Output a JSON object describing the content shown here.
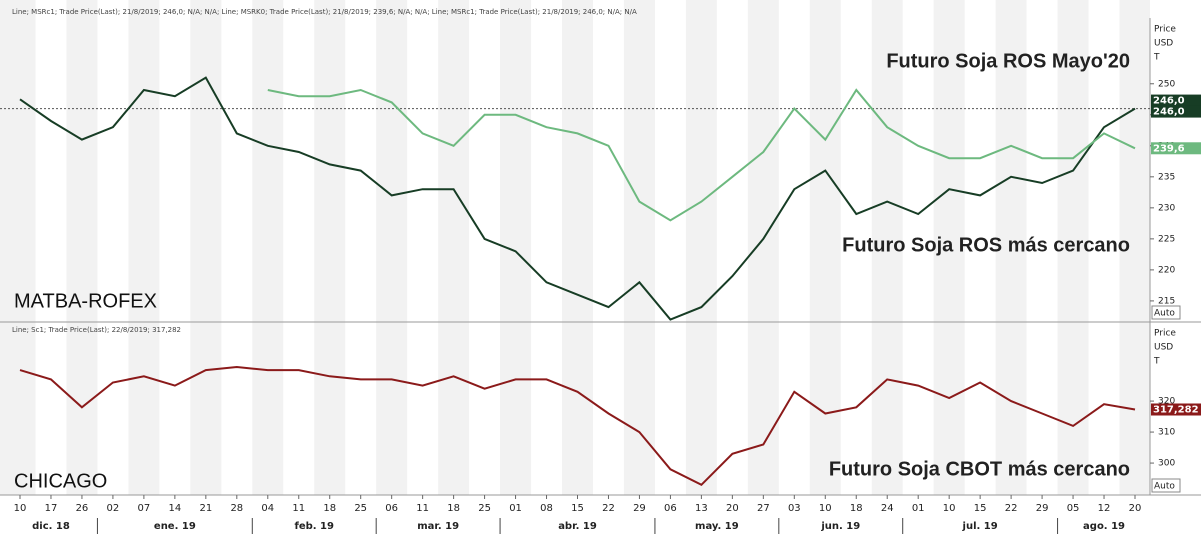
{
  "x_axis": {
    "months": [
      {
        "name": "dic. 18",
        "days": [
          "10",
          "17",
          "26"
        ]
      },
      {
        "name": "ene. 19",
        "days": [
          "02",
          "07",
          "14",
          "21",
          "28"
        ]
      },
      {
        "name": "feb. 19",
        "days": [
          "04",
          "11",
          "18",
          "25"
        ]
      },
      {
        "name": "mar. 19",
        "days": [
          "06",
          "11",
          "18",
          "25"
        ]
      },
      {
        "name": "abr. 19",
        "days": [
          "01",
          "08",
          "15",
          "22",
          "29"
        ]
      },
      {
        "name": "may. 19",
        "days": [
          "06",
          "13",
          "20",
          "27"
        ]
      },
      {
        "name": "jun. 19",
        "days": [
          "03",
          "10",
          "18",
          "24"
        ]
      },
      {
        "name": "jul. 19",
        "days": [
          "01",
          "10",
          "15",
          "22",
          "29"
        ]
      },
      {
        "name": "ago. 19",
        "days": [
          "05",
          "12",
          "20"
        ]
      }
    ]
  },
  "chart_data": [
    {
      "type": "line",
      "legend_text": "Line; MSRc1; Trade Price(Last); 21/8/2019; 246,0; N/A; N/A; Line; MSRK0; Trade Price(Last); 21/8/2019; 239,6; N/A; N/A; Line; MSRc1; Trade Price(Last); 21/8/2019; 246,0; N/A; N/A",
      "label": "MATBA-ROFEX",
      "y_unit": [
        "Price",
        "USD",
        "T"
      ],
      "scale_button": "Auto",
      "ylim": [
        211.6,
        260.6
      ],
      "yticks": [
        215,
        220,
        225,
        230,
        235,
        240,
        245,
        250
      ],
      "reference_line": {
        "value": 246,
        "label": "246,0"
      },
      "series": [
        {
          "name": "Futuro Soja ROS más cercano",
          "color": "#173d25",
          "last_label": "246,0",
          "values": [
            247.5,
            244,
            241,
            243,
            249,
            248,
            251,
            242,
            240,
            239,
            237,
            236,
            232,
            233,
            233,
            225,
            223,
            218,
            216,
            214,
            218,
            212,
            214,
            219,
            225,
            233,
            236,
            229,
            231,
            229,
            233,
            232,
            235,
            234,
            236,
            243,
            246
          ]
        },
        {
          "name": "Futuro Soja ROS Mayo'20",
          "color": "#6db97f",
          "last_label": "239,6",
          "values": [
            null,
            null,
            null,
            null,
            null,
            null,
            null,
            null,
            249,
            248,
            248,
            249,
            247,
            242,
            240,
            245,
            245,
            243,
            242,
            240,
            231,
            228,
            231,
            235,
            239,
            246,
            241,
            249,
            243,
            240,
            238,
            238,
            240,
            238,
            238,
            242,
            239.6
          ]
        }
      ]
    },
    {
      "type": "line",
      "legend_text": "Line; Sc1; Trade Price(Last); 22/8/2019; 317,282",
      "label": "CHICAGO",
      "y_unit": [
        "Price",
        "USD",
        "T"
      ],
      "scale_button": "Auto",
      "ylim": [
        289.7,
        339.7
      ],
      "yticks": [
        300,
        310,
        320
      ],
      "series": [
        {
          "name": "Futuro Soja CBOT más cercano",
          "color": "#8b1a1a",
          "last_label": "317,282",
          "values": [
            330,
            327,
            318,
            326,
            328,
            325,
            330,
            331,
            330,
            330,
            328,
            327,
            327,
            325,
            328,
            324,
            327,
            327,
            323,
            316,
            310,
            298,
            293,
            303,
            306,
            323,
            316,
            318,
            327,
            325,
            321,
            326,
            320,
            316,
            312,
            319,
            317.282
          ]
        }
      ]
    }
  ]
}
